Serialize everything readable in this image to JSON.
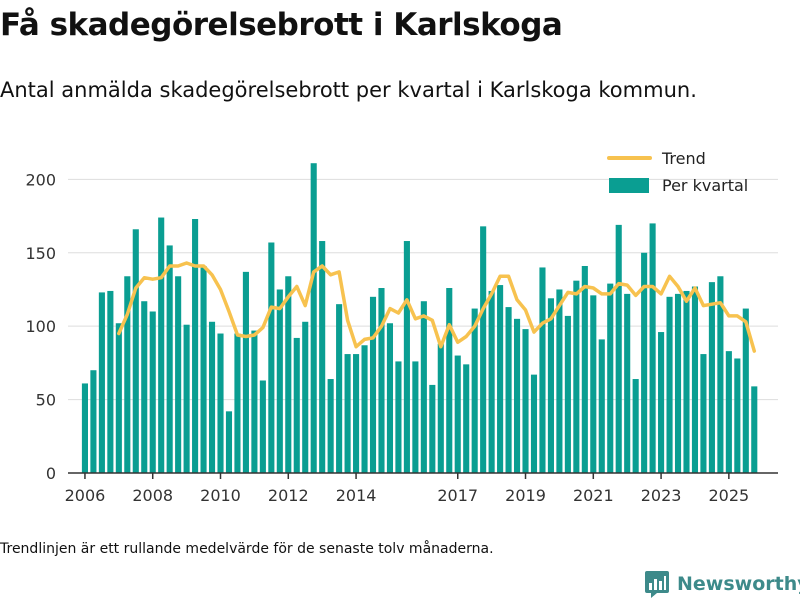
{
  "title": "Få skadegörelsebrott i Karlskoga",
  "subtitle": "Antal anmälda skadegörelsebrott per kvartal i Karlskoga kommun.",
  "footnote": "Trendlinjen är ett rullande medelvärde för de senaste tolv månaderna.",
  "brand": "Newsworthy",
  "colors": {
    "bar": "#0a9e92",
    "trend": "#f7c24f",
    "grid": "#dddddd",
    "axis": "#333333",
    "brand": "#3d8a8a"
  },
  "chart_data": {
    "type": "bar",
    "title": "Få skadegörelsebrott i Karlskoga",
    "xlabel": "",
    "ylabel": "",
    "ylim": [
      0,
      220
    ],
    "yticks": [
      0,
      50,
      100,
      150,
      200
    ],
    "grid": true,
    "legend_position": "top-right",
    "xlim": [
      2005.5,
      2026.45
    ],
    "xticks": [
      {
        "label": "2006",
        "value": 2006.0
      },
      {
        "label": "2008",
        "value": 2008.0
      },
      {
        "label": "2010",
        "value": 2010.0
      },
      {
        "label": "2012",
        "value": 2012.0
      },
      {
        "label": "2014",
        "value": 2014.0
      },
      {
        "label": "2017",
        "value": 2017.0
      },
      {
        "label": "2019",
        "value": 2019.0
      },
      {
        "label": "2021",
        "value": 2021.0
      },
      {
        "label": "2023",
        "value": 2023.0
      },
      {
        "label": "2025",
        "value": 2025.0
      }
    ],
    "start_year": 2006.0,
    "quarter_step": 0.25,
    "bar_fraction": 0.72,
    "series": [
      {
        "name": "Per kvartal",
        "type": "bar",
        "values": [
          61,
          70,
          123,
          124,
          102,
          134,
          166,
          117,
          110,
          174,
          155,
          134,
          101,
          173,
          141,
          103,
          95,
          42,
          95,
          137,
          97,
          63,
          157,
          125,
          134,
          92,
          103,
          211,
          158,
          64,
          115,
          81,
          81,
          87,
          120,
          126,
          102,
          76,
          158,
          76,
          117,
          60,
          88,
          126,
          80,
          74,
          112,
          168,
          124,
          128,
          113,
          105,
          98,
          67,
          140,
          119,
          125,
          107,
          131,
          141,
          121,
          91,
          129,
          169,
          122,
          64,
          150,
          170,
          96,
          120,
          122,
          124,
          127,
          81,
          130,
          134,
          83,
          78,
          112,
          59
        ]
      },
      {
        "name": "Trend",
        "type": "line",
        "start_index": 4,
        "values": [
          95,
          108,
          126,
          133,
          132,
          133,
          141,
          141,
          143,
          141,
          141,
          135,
          125,
          110,
          94,
          93,
          94,
          99,
          113,
          112,
          120,
          127,
          114,
          137,
          141,
          135,
          137,
          104,
          86,
          91,
          92,
          100,
          112,
          109,
          118,
          105,
          107,
          104,
          86,
          101,
          89,
          93,
          100,
          112,
          122,
          134,
          134,
          118,
          111,
          96,
          102,
          105,
          114,
          123,
          122,
          127,
          126,
          122,
          122,
          129,
          128,
          121,
          127,
          127,
          122,
          134,
          127,
          117,
          126,
          114,
          115,
          116,
          107,
          107,
          103,
          83
        ]
      }
    ]
  }
}
